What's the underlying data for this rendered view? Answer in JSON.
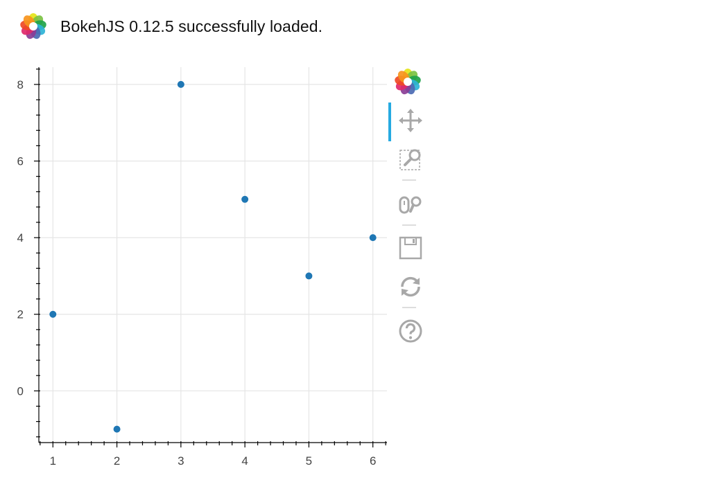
{
  "banner": {
    "message": "BokehJS 0.12.5 successfully loaded."
  },
  "icons": {
    "banner_logo": "bokeh-logo-icon",
    "toolbar_logo": "bokeh-logo-icon"
  },
  "toolbar": {
    "tools": [
      {
        "name": "pan",
        "icon": "pan-icon",
        "active": true
      },
      {
        "name": "box-zoom",
        "icon": "box-zoom-icon",
        "active": false
      },
      {
        "name": "wheel-zoom",
        "icon": "wheel-zoom-icon",
        "active": false
      },
      {
        "name": "save",
        "icon": "save-icon",
        "active": false
      },
      {
        "name": "reset",
        "icon": "reset-icon",
        "active": false
      },
      {
        "name": "help",
        "icon": "help-icon",
        "active": false
      }
    ],
    "active_color": "#26aae1",
    "icon_color": "#a8a8a8"
  },
  "chart_data": {
    "type": "scatter",
    "x": [
      1,
      2,
      3,
      4,
      5,
      6
    ],
    "y": [
      2,
      -1,
      8,
      5,
      3,
      4
    ],
    "xlim": [
      0.78,
      6.22
    ],
    "ylim": [
      -1.35,
      8.45
    ],
    "xticks": [
      "1",
      "2",
      "3",
      "4",
      "5",
      "6"
    ],
    "yticks": [
      "0",
      "2",
      "4",
      "6",
      "8"
    ],
    "grid": true,
    "marker_color": "#1f77b4",
    "grid_color": "#e5e5e5"
  }
}
